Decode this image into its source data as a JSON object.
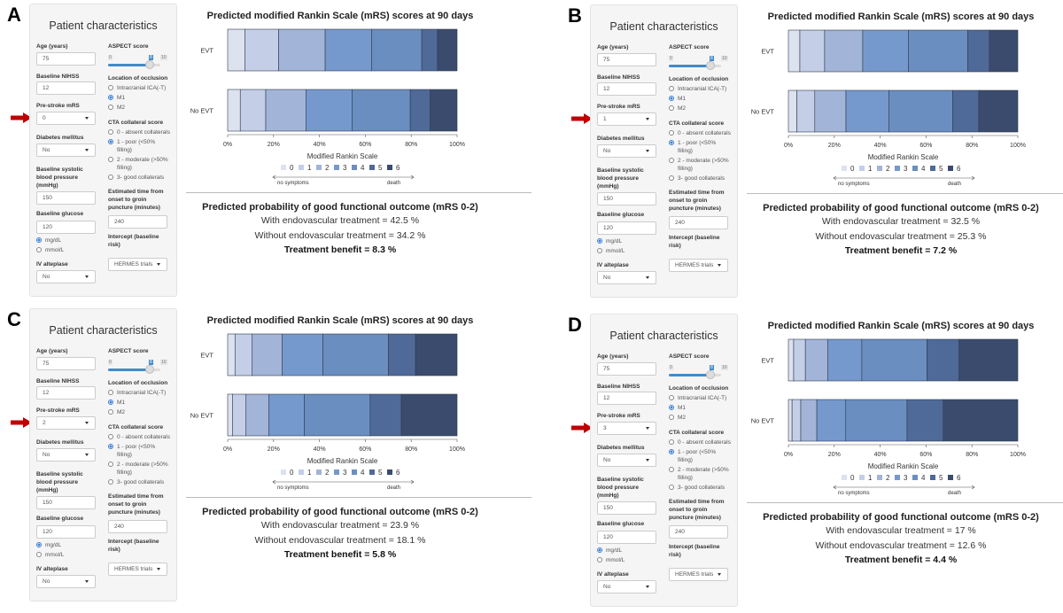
{
  "form": {
    "title": "Patient characteristics",
    "age_label": "Age (years)",
    "age_value": "75",
    "nihss_label": "Baseline NIHSS",
    "nihss_value": "12",
    "prestroke_label": "Pre-stroke mRS",
    "diabetes_label": "Diabetes mellitus",
    "diabetes_value": "No",
    "sbp_label_1": "Baseline systolic",
    "sbp_label_2": "blood pressure",
    "sbp_label_3": "(mmHg)",
    "sbp_value": "150",
    "glucose_label": "Baseline glucose",
    "glucose_value": "120",
    "glucose_units": [
      "mg/dL",
      "mmol/L"
    ],
    "glucose_unit_selected": 0,
    "alteplase_label": "IV alteplase",
    "alteplase_value": "No",
    "aspect_label": "ASPECT score",
    "aspect_min": "0",
    "aspect_value": "8",
    "aspect_max": "10",
    "location_label": "Location of occlusion",
    "location_options": [
      "Intracranial ICA(-T)",
      "M1",
      "M2"
    ],
    "location_selected": 1,
    "cta_label": "CTA collateral score",
    "cta_options": [
      [
        "0 - absent collaterals"
      ],
      [
        "1 - poor (<50%",
        "filling)"
      ],
      [
        "2 - moderate (>50%",
        "filling)"
      ],
      [
        "3- good collaterals"
      ]
    ],
    "cta_selected": 1,
    "time_label_1": "Estimated time from",
    "time_label_2": "onset to groin",
    "time_label_3": "puncture (minutes)",
    "time_value": "240",
    "intercept_label_1": "Intercept (baseline",
    "intercept_label_2": "risk)",
    "intercept_value": "HERMES trials"
  },
  "chart_common": {
    "title": "Predicted modified Rankin Scale (mRS) scores at 90 days",
    "xlabel": "Modified Rankin Scale",
    "ticks": [
      "0%",
      "20%",
      "40%",
      "60%",
      "80%",
      "100%"
    ],
    "legend_left": "no symptoms",
    "legend_right": "death",
    "colors": [
      "#dde2ef",
      "#c4cee7",
      "#a2b4d7",
      "#7699cd",
      "#6a8ec0",
      "#4f6998",
      "#3a4b6d"
    ],
    "prob_title": "Predicted probability of good functional outcome (mRS 0-2)"
  },
  "panels": [
    {
      "letter": "A",
      "prestroke_value": "0",
      "with": "With endovascular treatment = 42.5 %",
      "without": "Without endovascular treatment = 34.2 %",
      "benefit": "Treatment benefit = 8.3 %"
    },
    {
      "letter": "B",
      "prestroke_value": "1",
      "with": "With endovascular treatment = 32.5 %",
      "without": "Without endovascular treatment = 25.3 %",
      "benefit": "Treatment benefit = 7.2 %"
    },
    {
      "letter": "C",
      "prestroke_value": "2",
      "with": "With endovascular treatment = 23.9 %",
      "without": "Without endovascular treatment = 18.1 %",
      "benefit": "Treatment benefit = 5.8 %"
    },
    {
      "letter": "D",
      "prestroke_value": "3",
      "with": "With endovascular treatment = 17 %",
      "without": "Without endovascular treatment = 12.6 %",
      "benefit": "Treatment benefit = 4.4 %"
    }
  ],
  "chart_data": [
    {
      "type": "bar",
      "stacked": true,
      "orientation": "horizontal",
      "title": "Predicted modified Rankin Scale (mRS) scores at 90 days",
      "xlabel": "Modified Rankin Scale",
      "xlim": [
        0,
        100
      ],
      "categories": [
        "EVT",
        "No EVT"
      ],
      "series": [
        {
          "name": "0",
          "values": [
            7.6,
            5.5
          ]
        },
        {
          "name": "1",
          "values": [
            14.6,
            11.1
          ]
        },
        {
          "name": "2",
          "values": [
            20.3,
            17.5
          ]
        },
        {
          "name": "3",
          "values": [
            20.2,
            20.1
          ]
        },
        {
          "name": "4",
          "values": [
            21.9,
            25.4
          ]
        },
        {
          "name": "5",
          "values": [
            6.9,
            8.7
          ]
        },
        {
          "name": "6",
          "values": [
            8.5,
            11.7
          ]
        }
      ]
    },
    {
      "type": "bar",
      "stacked": true,
      "orientation": "horizontal",
      "title": "Predicted modified Rankin Scale (mRS) scores at 90 days",
      "xlabel": "Modified Rankin Scale",
      "xlim": [
        0,
        100
      ],
      "categories": [
        "EVT",
        "No EVT"
      ],
      "series": [
        {
          "name": "0",
          "values": [
            5.0,
            3.7
          ]
        },
        {
          "name": "1",
          "values": [
            10.8,
            7.8
          ]
        },
        {
          "name": "2",
          "values": [
            16.6,
            13.6
          ]
        },
        {
          "name": "3",
          "values": [
            19.9,
            18.7
          ]
        },
        {
          "name": "4",
          "values": [
            25.9,
            27.8
          ]
        },
        {
          "name": "5",
          "values": [
            9.4,
            11.4
          ]
        },
        {
          "name": "6",
          "values": [
            12.4,
            17.0
          ]
        }
      ]
    },
    {
      "type": "bar",
      "stacked": true,
      "orientation": "horizontal",
      "title": "Predicted modified Rankin Scale (mRS) scores at 90 days",
      "xlabel": "Modified Rankin Scale",
      "xlim": [
        0,
        100
      ],
      "categories": [
        "EVT",
        "No EVT"
      ],
      "series": [
        {
          "name": "0",
          "values": [
            3.2,
            2.2
          ]
        },
        {
          "name": "1",
          "values": [
            7.5,
            5.8
          ]
        },
        {
          "name": "2",
          "values": [
            13.1,
            9.9
          ]
        },
        {
          "name": "3",
          "values": [
            17.7,
            15.5
          ]
        },
        {
          "name": "4",
          "values": [
            28.6,
            28.7
          ]
        },
        {
          "name": "5",
          "values": [
            11.8,
            13.6
          ]
        },
        {
          "name": "6",
          "values": [
            18.1,
            24.3
          ]
        }
      ]
    },
    {
      "type": "bar",
      "stacked": true,
      "orientation": "horizontal",
      "title": "Predicted modified Rankin Scale (mRS) scores at 90 days",
      "xlabel": "Modified Rankin Scale",
      "xlim": [
        0,
        100
      ],
      "categories": [
        "EVT",
        "No EVT"
      ],
      "series": [
        {
          "name": "0",
          "values": [
            2.3,
            1.6
          ]
        },
        {
          "name": "1",
          "values": [
            5.1,
            3.8
          ]
        },
        {
          "name": "2",
          "values": [
            9.7,
            7.0
          ]
        },
        {
          "name": "3",
          "values": [
            14.9,
            12.6
          ]
        },
        {
          "name": "4",
          "values": [
            28.4,
            26.7
          ]
        },
        {
          "name": "5",
          "values": [
            14.0,
            15.8
          ]
        },
        {
          "name": "6",
          "values": [
            25.6,
            32.5
          ]
        }
      ]
    }
  ]
}
